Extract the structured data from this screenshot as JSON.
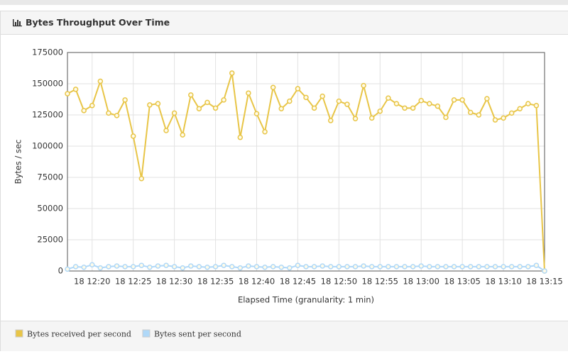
{
  "panel_title": "Bytes Throughput Over Time",
  "chart_data": {
    "type": "line",
    "y_label": "Bytes / sec",
    "x_label": "Elapsed Time (granularity: 1 min)",
    "categories": [
      null,
      null,
      null,
      "18 12:20",
      null,
      null,
      null,
      null,
      "18 12:25",
      null,
      null,
      null,
      null,
      "18 12:30",
      null,
      null,
      null,
      null,
      "18 12:35",
      null,
      null,
      null,
      null,
      "18 12:40",
      null,
      null,
      null,
      null,
      "18 12:45",
      null,
      null,
      null,
      null,
      "18 12:50",
      null,
      null,
      null,
      null,
      "18 12:55",
      null,
      null,
      null,
      null,
      "18 13:00",
      null,
      null,
      null,
      null,
      "18 13:05",
      null,
      null,
      null,
      null,
      "18 13:10",
      null,
      null,
      null,
      null,
      "18 13:15"
    ],
    "series": [
      {
        "name": "Bytes received per second",
        "color": "#e8c547",
        "values": [
          142000,
          145500,
          128500,
          132500,
          152000,
          126500,
          124500,
          137000,
          108000,
          74000,
          133000,
          134000,
          112500,
          126500,
          109000,
          141000,
          130000,
          135000,
          130500,
          137000,
          158500,
          107000,
          142500,
          126000,
          111500,
          147000,
          130000,
          136000,
          146000,
          139000,
          130500,
          140000,
          120500,
          136000,
          133500,
          122000,
          148500,
          122500,
          128000,
          138500,
          134000,
          130500,
          130500,
          136500,
          134000,
          132000,
          123000,
          137000,
          137000,
          127000,
          125000,
          138000,
          121000,
          122500,
          126500,
          130000,
          134000,
          132500,
          0
        ]
      },
      {
        "name": "Bytes sent per second",
        "color": "#afd8f8",
        "values": [
          1500,
          3500,
          3000,
          5000,
          2500,
          3500,
          4000,
          3500,
          3500,
          4500,
          3000,
          4000,
          4500,
          3500,
          2500,
          4000,
          3500,
          3000,
          3500,
          4500,
          3500,
          2500,
          4000,
          3500,
          3000,
          3500,
          3000,
          2500,
          4500,
          3500,
          3500,
          4000,
          3500,
          3500,
          3500,
          3500,
          4000,
          3500,
          3500,
          3500,
          3500,
          3500,
          3500,
          4000,
          3500,
          3500,
          3500,
          3500,
          3500,
          3500,
          3500,
          3500,
          3500,
          3500,
          3500,
          3500,
          3500,
          4500,
          0
        ]
      }
    ],
    "ylim": [
      0,
      175000
    ],
    "yticks": [
      0,
      25000,
      50000,
      75000,
      100000,
      125000,
      150000,
      175000
    ],
    "grid": true
  }
}
